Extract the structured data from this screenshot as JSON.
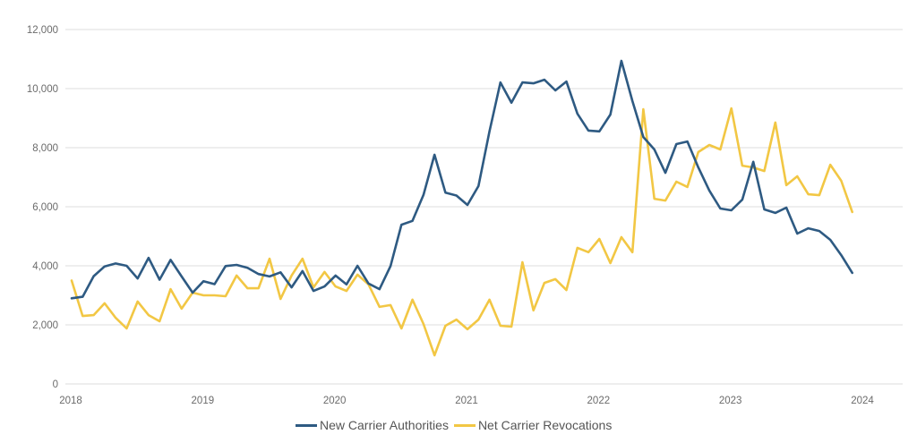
{
  "chart_data": {
    "type": "line",
    "title": "",
    "xlabel": "",
    "ylabel": "",
    "ylim": [
      0,
      12000
    ],
    "y_ticks": [
      "0",
      "2,000",
      "4,000",
      "6,000",
      "8,000",
      "10,000",
      "12,000"
    ],
    "y_tick_values": [
      0,
      2000,
      4000,
      6000,
      8000,
      10000,
      12000
    ],
    "x_ticks": [
      "2018",
      "2019",
      "2020",
      "2021",
      "2022",
      "2023",
      "2024"
    ],
    "x_range": [
      "2018-01",
      "2024-01"
    ],
    "grid": "horizontal",
    "legend_position": "bottom",
    "x": [
      "2018-01",
      "2018-02",
      "2018-03",
      "2018-04",
      "2018-05",
      "2018-06",
      "2018-07",
      "2018-08",
      "2018-09",
      "2018-10",
      "2018-11",
      "2018-12",
      "2019-01",
      "2019-02",
      "2019-03",
      "2019-04",
      "2019-05",
      "2019-06",
      "2019-07",
      "2019-08",
      "2019-09",
      "2019-10",
      "2019-11",
      "2019-12",
      "2020-01",
      "2020-02",
      "2020-03",
      "2020-04",
      "2020-05",
      "2020-06",
      "2020-07",
      "2020-08",
      "2020-09",
      "2020-10",
      "2020-11",
      "2020-12",
      "2021-01",
      "2021-02",
      "2021-03",
      "2021-04",
      "2021-05",
      "2021-06",
      "2021-07",
      "2021-08",
      "2021-09",
      "2021-10",
      "2021-11",
      "2021-12",
      "2022-01",
      "2022-02",
      "2022-03",
      "2022-04",
      "2022-05",
      "2022-06",
      "2022-07",
      "2022-08",
      "2022-09",
      "2022-10",
      "2022-11",
      "2022-12",
      "2023-01",
      "2023-02",
      "2023-03",
      "2023-04",
      "2023-05",
      "2023-06",
      "2023-07",
      "2023-08",
      "2023-09",
      "2023-10",
      "2023-11",
      "2023-12"
    ],
    "series": [
      {
        "name": "New Carrier Authorities",
        "color": "#2E5A82",
        "values": [
          2900,
          2950,
          3650,
          3980,
          4080,
          4000,
          3570,
          4270,
          3530,
          4200,
          3640,
          3090,
          3480,
          3380,
          3990,
          4030,
          3930,
          3720,
          3640,
          3780,
          3270,
          3820,
          3150,
          3300,
          3670,
          3370,
          4000,
          3400,
          3210,
          3990,
          5390,
          5520,
          6400,
          7760,
          6480,
          6380,
          6060,
          6700,
          8550,
          10210,
          9520,
          10210,
          10180,
          10300,
          9940,
          10240,
          9150,
          8580,
          8550,
          9120,
          10940,
          9580,
          8360,
          7940,
          7150,
          8120,
          8210,
          7330,
          6550,
          5940,
          5880,
          6240,
          7520,
          5910,
          5790,
          5970,
          5090,
          5270,
          5180,
          4880,
          4360,
          3760
        ]
      },
      {
        "name": "Net Carrier Revocations",
        "color": "#F2C744",
        "values": [
          3500,
          2300,
          2330,
          2730,
          2240,
          1880,
          2790,
          2330,
          2120,
          3210,
          2550,
          3090,
          3000,
          3000,
          2970,
          3670,
          3240,
          3240,
          4240,
          2880,
          3670,
          4240,
          3270,
          3790,
          3300,
          3150,
          3700,
          3370,
          2610,
          2670,
          1880,
          2850,
          2030,
          970,
          1970,
          2180,
          1850,
          2180,
          2850,
          1970,
          1940,
          4120,
          2490,
          3420,
          3550,
          3180,
          4610,
          4460,
          4910,
          4090,
          4970,
          4460,
          9300,
          6270,
          6210,
          6850,
          6670,
          7850,
          8090,
          7940,
          9330,
          7390,
          7330,
          7210,
          8850,
          6730,
          7030,
          6420,
          6390,
          7420,
          6880,
          5820
        ]
      }
    ]
  },
  "legend": {
    "items": [
      {
        "label": "New Carrier Authorities",
        "color": "#2E5A82"
      },
      {
        "label": "Net Carrier Revocations",
        "color": "#F2C744"
      }
    ]
  }
}
